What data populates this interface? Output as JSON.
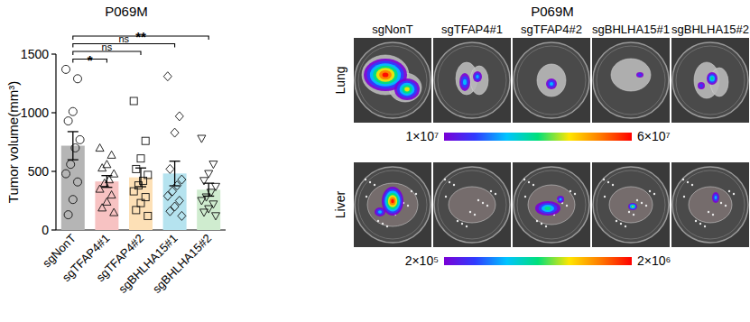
{
  "chart_data": {
    "type": "bar",
    "title": "P069M",
    "y_label": "Tumor volume(mm³)",
    "categories": [
      "sgNonT",
      "sgTFAP4#1",
      "sgTFAP4#2",
      "sgBHLHA15#1",
      "sgBHLHA15#2"
    ],
    "values": [
      719,
      414,
      449,
      482,
      344
    ],
    "errors": [
      120,
      50,
      80,
      105,
      55
    ],
    "colors": [
      "#b5b5b5",
      "#f7c2c2",
      "#fde0b6",
      "#b5e3ef",
      "#cfeccf"
    ],
    "points": [
      {
        "marker": "circle",
        "values": [
          1370,
          1290,
          1010,
          930,
          770,
          700,
          560,
          480,
          410,
          260,
          130
        ]
      },
      {
        "marker": "triangle",
        "values": [
          700,
          640,
          560,
          530,
          480,
          430,
          400,
          350,
          300,
          240,
          190,
          150
        ]
      },
      {
        "marker": "square",
        "values": [
          1100,
          760,
          610,
          520,
          470,
          420,
          380,
          330,
          280,
          230,
          170,
          120
        ]
      },
      {
        "marker": "diamond",
        "values": [
          1310,
          970,
          830,
          520,
          430,
          380,
          330,
          290,
          250,
          200,
          160,
          120
        ]
      },
      {
        "marker": "triangle-down",
        "values": [
          780,
          560,
          480,
          420,
          370,
          320,
          280,
          250,
          220,
          180,
          150,
          120
        ]
      }
    ],
    "comparisons": [
      {
        "categories": [
          "sgNonT",
          "sgTFAP4#1"
        ],
        "label": "*"
      },
      {
        "categories": [
          "sgNonT",
          "sgTFAP4#2"
        ],
        "label": "ns"
      },
      {
        "categories": [
          "sgNonT",
          "sgBHLHA15#1"
        ],
        "label": "ns"
      },
      {
        "categories": [
          "sgNonT",
          "sgBHLHA15#2"
        ],
        "label": "**"
      }
    ],
    "ylim": [
      0,
      1500
    ],
    "yticks": [
      0,
      500,
      1000,
      1500
    ]
  },
  "imaging": {
    "title": "P069M",
    "columns": [
      "sgNonT",
      "sgTFAP4#1",
      "sgTFAP4#2",
      "sgBHLHA15#1",
      "sgBHLHA15#2"
    ],
    "rows": [
      {
        "label": "Lung",
        "colorbar": {
          "range": [
            10000000,
            60000000
          ],
          "ticks": [
            {
              "value": 10000000,
              "label": "1×10⁷"
            },
            {
              "value": 60000000,
              "label": "6×10⁷"
            }
          ]
        }
      },
      {
        "label": "Liver",
        "colorbar": {
          "range": [
            200000,
            2000000
          ],
          "ticks": [
            {
              "value": 200000,
              "label": "2×10⁵"
            },
            {
              "value": 2000000,
              "label": "2×10⁶"
            }
          ]
        }
      }
    ]
  }
}
